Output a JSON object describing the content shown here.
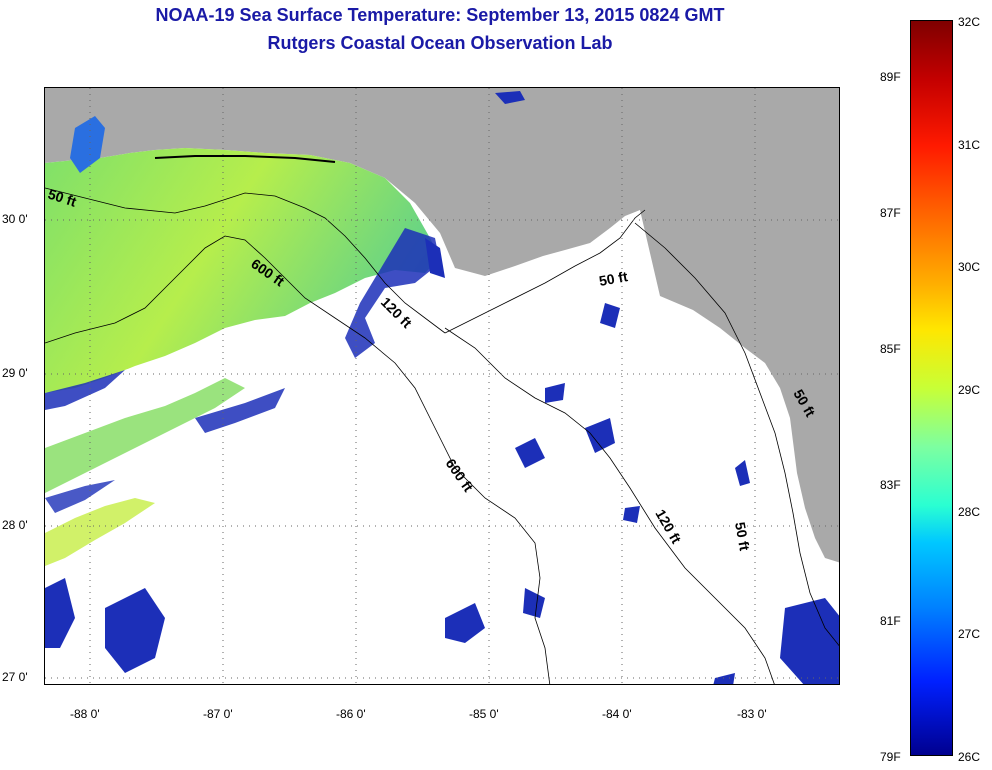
{
  "header": {
    "title": "NOAA-19 Sea Surface Temperature:  September 13, 2015 0824 GMT",
    "subtitle": "Rutgers Coastal Ocean Observation Lab"
  },
  "map": {
    "lat_labels": [
      "30 0'",
      "29 0'",
      "28 0'",
      "27 0'"
    ],
    "lon_labels": [
      "-88 0'",
      "-87 0'",
      "-86 0'",
      "-85 0'",
      "-84 0'",
      "-83 0'"
    ],
    "depth_labels": [
      "50 ft",
      "600 ft",
      "120 ft",
      "600 ft",
      "50 ft",
      "120 ft",
      "50 ft",
      "50 ft"
    ],
    "colors": {
      "land": "#a9a9a9",
      "no_data": "#ffffff",
      "warm_water": "#9ee85a",
      "cool_water": "#1c2fb8"
    }
  },
  "colorbar": {
    "celsius": [
      "32C",
      "31C",
      "30C",
      "29C",
      "28C",
      "27C",
      "26C"
    ],
    "fahrenheit": [
      "89F",
      "87F",
      "85F",
      "83F",
      "81F",
      "79F"
    ],
    "range_c": [
      26,
      32
    ]
  }
}
